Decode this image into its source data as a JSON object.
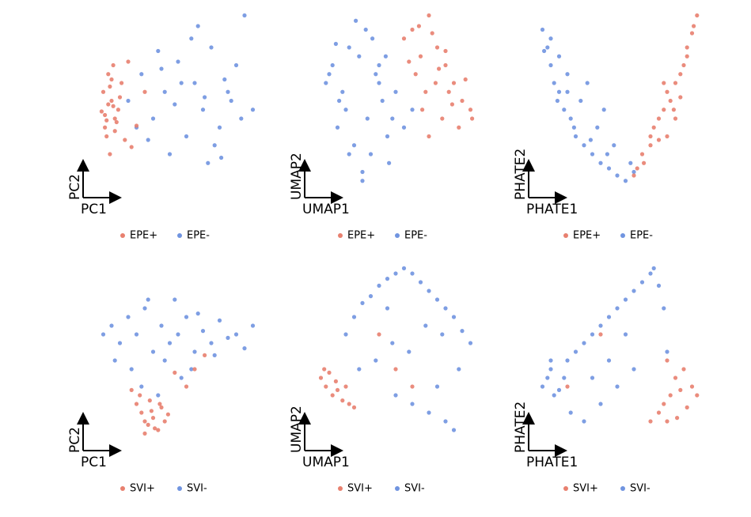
{
  "chart_data": [
    {
      "type": "scatter",
      "x_label": "PC1",
      "y_label": "PC2",
      "xlim": [
        0,
        100
      ],
      "ylim": [
        0,
        100
      ],
      "series": [
        {
          "name": "EPE+",
          "color": "#e8806f",
          "x": [
            5,
            8,
            10,
            12,
            6,
            9,
            14,
            7,
            11,
            15,
            4,
            13,
            18,
            22,
            8,
            10,
            6,
            12,
            16,
            9,
            25,
            20,
            30,
            11,
            7
          ],
          "y": [
            55,
            48,
            62,
            40,
            35,
            58,
            45,
            30,
            70,
            52,
            44,
            38,
            28,
            24,
            65,
            50,
            42,
            33,
            60,
            20,
            36,
            72,
            55,
            47,
            39
          ]
        },
        {
          "name": "EPE-",
          "color": "#7094e0",
          "x": [
            20,
            28,
            35,
            42,
            50,
            55,
            60,
            65,
            70,
            75,
            80,
            85,
            90,
            45,
            38,
            58,
            68,
            78,
            88,
            32,
            48,
            62,
            72,
            82,
            25,
            52,
            95,
            40,
            66,
            76
          ],
          "y": [
            50,
            65,
            40,
            55,
            72,
            30,
            60,
            45,
            80,
            35,
            55,
            70,
            98,
            20,
            78,
            85,
            15,
            62,
            40,
            28,
            48,
            92,
            25,
            50,
            35,
            60,
            45,
            68,
            52,
            18
          ]
        }
      ]
    },
    {
      "type": "scatter",
      "x_label": "UMAP1",
      "y_label": "UMAP2",
      "xlim": [
        0,
        100
      ],
      "ylim": [
        0,
        100
      ],
      "series": [
        {
          "name": "EPE+",
          "color": "#e8806f",
          "x": [
            55,
            60,
            65,
            70,
            75,
            80,
            85,
            90,
            95,
            62,
            68,
            72,
            78,
            82,
            88,
            92,
            58,
            66,
            74,
            84,
            96,
            70,
            80,
            64,
            76
          ],
          "y": [
            85,
            90,
            75,
            98,
            80,
            70,
            60,
            50,
            45,
            65,
            55,
            88,
            40,
            55,
            35,
            62,
            72,
            45,
            60,
            48,
            40,
            30,
            78,
            92,
            68
          ]
        },
        {
          "name": "EPE-",
          "color": "#7094e0",
          "x": [
            8,
            12,
            18,
            22,
            28,
            32,
            38,
            42,
            48,
            15,
            25,
            35,
            45,
            20,
            30,
            40,
            10,
            50,
            55,
            26,
            36,
            46,
            16,
            33,
            60,
            40,
            30,
            22,
            44,
            14
          ],
          "y": [
            60,
            70,
            55,
            80,
            75,
            90,
            65,
            50,
            40,
            35,
            25,
            20,
            30,
            45,
            10,
            60,
            65,
            55,
            35,
            95,
            85,
            15,
            50,
            40,
            45,
            70,
            5,
            20,
            75,
            82
          ]
        }
      ]
    },
    {
      "type": "scatter",
      "x_label": "PHATE1",
      "y_label": "PHATE2",
      "xlim": [
        0,
        100
      ],
      "ylim": [
        0,
        100
      ],
      "series": [
        {
          "name": "EPE+",
          "color": "#e8806f",
          "x": [
            62,
            65,
            70,
            72,
            75,
            78,
            80,
            82,
            85,
            88,
            90,
            92,
            95,
            98,
            96,
            85,
            80,
            75,
            88,
            92,
            70,
            78,
            84,
            60,
            66
          ],
          "y": [
            12,
            20,
            25,
            35,
            40,
            45,
            55,
            50,
            60,
            65,
            70,
            80,
            88,
            98,
            92,
            40,
            30,
            28,
            52,
            75,
            30,
            60,
            45,
            8,
            15
          ]
        },
        {
          "name": "EPE-",
          "color": "#7094e0",
          "x": [
            5,
            8,
            10,
            12,
            15,
            18,
            22,
            25,
            30,
            35,
            40,
            45,
            50,
            55,
            60,
            10,
            15,
            20,
            28,
            38,
            48,
            6,
            14,
            24,
            34,
            44,
            58,
            32,
            42,
            20
          ],
          "y": [
            90,
            80,
            70,
            60,
            55,
            45,
            40,
            30,
            25,
            20,
            15,
            12,
            8,
            5,
            10,
            85,
            75,
            65,
            50,
            35,
            25,
            78,
            50,
            35,
            28,
            20,
            15,
            60,
            45,
            55
          ]
        }
      ]
    },
    {
      "type": "scatter",
      "x_label": "PC1",
      "y_label": "PC2",
      "xlim": [
        0,
        100
      ],
      "ylim": [
        0,
        100
      ],
      "series": [
        {
          "name": "SVI+",
          "color": "#e8806f",
          "x": [
            25,
            28,
            30,
            32,
            35,
            38,
            40,
            42,
            27,
            33,
            36,
            44,
            30,
            39,
            34,
            60,
            55,
            66,
            48,
            22
          ],
          "y": [
            20,
            15,
            10,
            8,
            12,
            5,
            18,
            10,
            25,
            22,
            6,
            14,
            3,
            20,
            16,
            40,
            30,
            48,
            38,
            28
          ]
        },
        {
          "name": "SVI-",
          "color": "#7094e0",
          "x": [
            5,
            10,
            15,
            20,
            25,
            30,
            35,
            40,
            45,
            50,
            55,
            60,
            65,
            70,
            75,
            80,
            85,
            90,
            95,
            12,
            22,
            32,
            42,
            52,
            62,
            72,
            28,
            38,
            48,
            58
          ],
          "y": [
            60,
            65,
            55,
            70,
            60,
            75,
            50,
            65,
            55,
            60,
            70,
            50,
            62,
            55,
            68,
            58,
            60,
            52,
            65,
            45,
            40,
            80,
            45,
            35,
            72,
            48,
            30,
            25,
            80,
            40
          ]
        }
      ]
    },
    {
      "type": "scatter",
      "x_label": "UMAP1",
      "y_label": "UMAP2",
      "xlim": [
        0,
        100
      ],
      "ylim": [
        0,
        100
      ],
      "series": [
        {
          "name": "SVI+",
          "color": "#e8806f",
          "x": [
            5,
            8,
            10,
            12,
            15,
            18,
            20,
            22,
            7,
            14,
            25,
            60,
            50,
            40
          ],
          "y": [
            35,
            30,
            38,
            25,
            28,
            22,
            30,
            20,
            40,
            33,
            18,
            30,
            40,
            60
          ]
        },
        {
          "name": "SVI-",
          "color": "#7094e0",
          "x": [
            20,
            25,
            30,
            35,
            40,
            45,
            50,
            55,
            60,
            65,
            70,
            75,
            80,
            85,
            90,
            95,
            28,
            38,
            48,
            58,
            68,
            78,
            88,
            50,
            60,
            70,
            80,
            85,
            75,
            45
          ],
          "y": [
            60,
            70,
            78,
            82,
            88,
            92,
            95,
            98,
            95,
            90,
            85,
            80,
            75,
            70,
            62,
            55,
            40,
            45,
            55,
            50,
            65,
            60,
            40,
            25,
            20,
            15,
            10,
            5,
            30,
            75
          ]
        }
      ]
    },
    {
      "type": "scatter",
      "x_label": "PHATE1",
      "y_label": "PHATE2",
      "xlim": [
        0,
        100
      ],
      "ylim": [
        0,
        100
      ],
      "series": [
        {
          "name": "SVI+",
          "color": "#e8806f",
          "x": [
            75,
            78,
            80,
            82,
            85,
            88,
            90,
            92,
            95,
            98,
            80,
            86,
            70,
            40,
            20
          ],
          "y": [
            15,
            20,
            10,
            25,
            35,
            28,
            40,
            18,
            30,
            25,
            45,
            12,
            10,
            60,
            30
          ]
        },
        {
          "name": "SVI-",
          "color": "#7094e0",
          "x": [
            5,
            8,
            10,
            12,
            15,
            18,
            20,
            25,
            30,
            35,
            40,
            45,
            50,
            55,
            60,
            65,
            70,
            72,
            75,
            78,
            80,
            60,
            50,
            40,
            30,
            22,
            10,
            35,
            45,
            55
          ],
          "y": [
            30,
            35,
            40,
            25,
            28,
            35,
            45,
            50,
            55,
            60,
            65,
            70,
            75,
            80,
            85,
            90,
            95,
            98,
            88,
            75,
            50,
            40,
            30,
            20,
            10,
            15,
            45,
            35,
            45,
            60
          ]
        }
      ]
    }
  ]
}
